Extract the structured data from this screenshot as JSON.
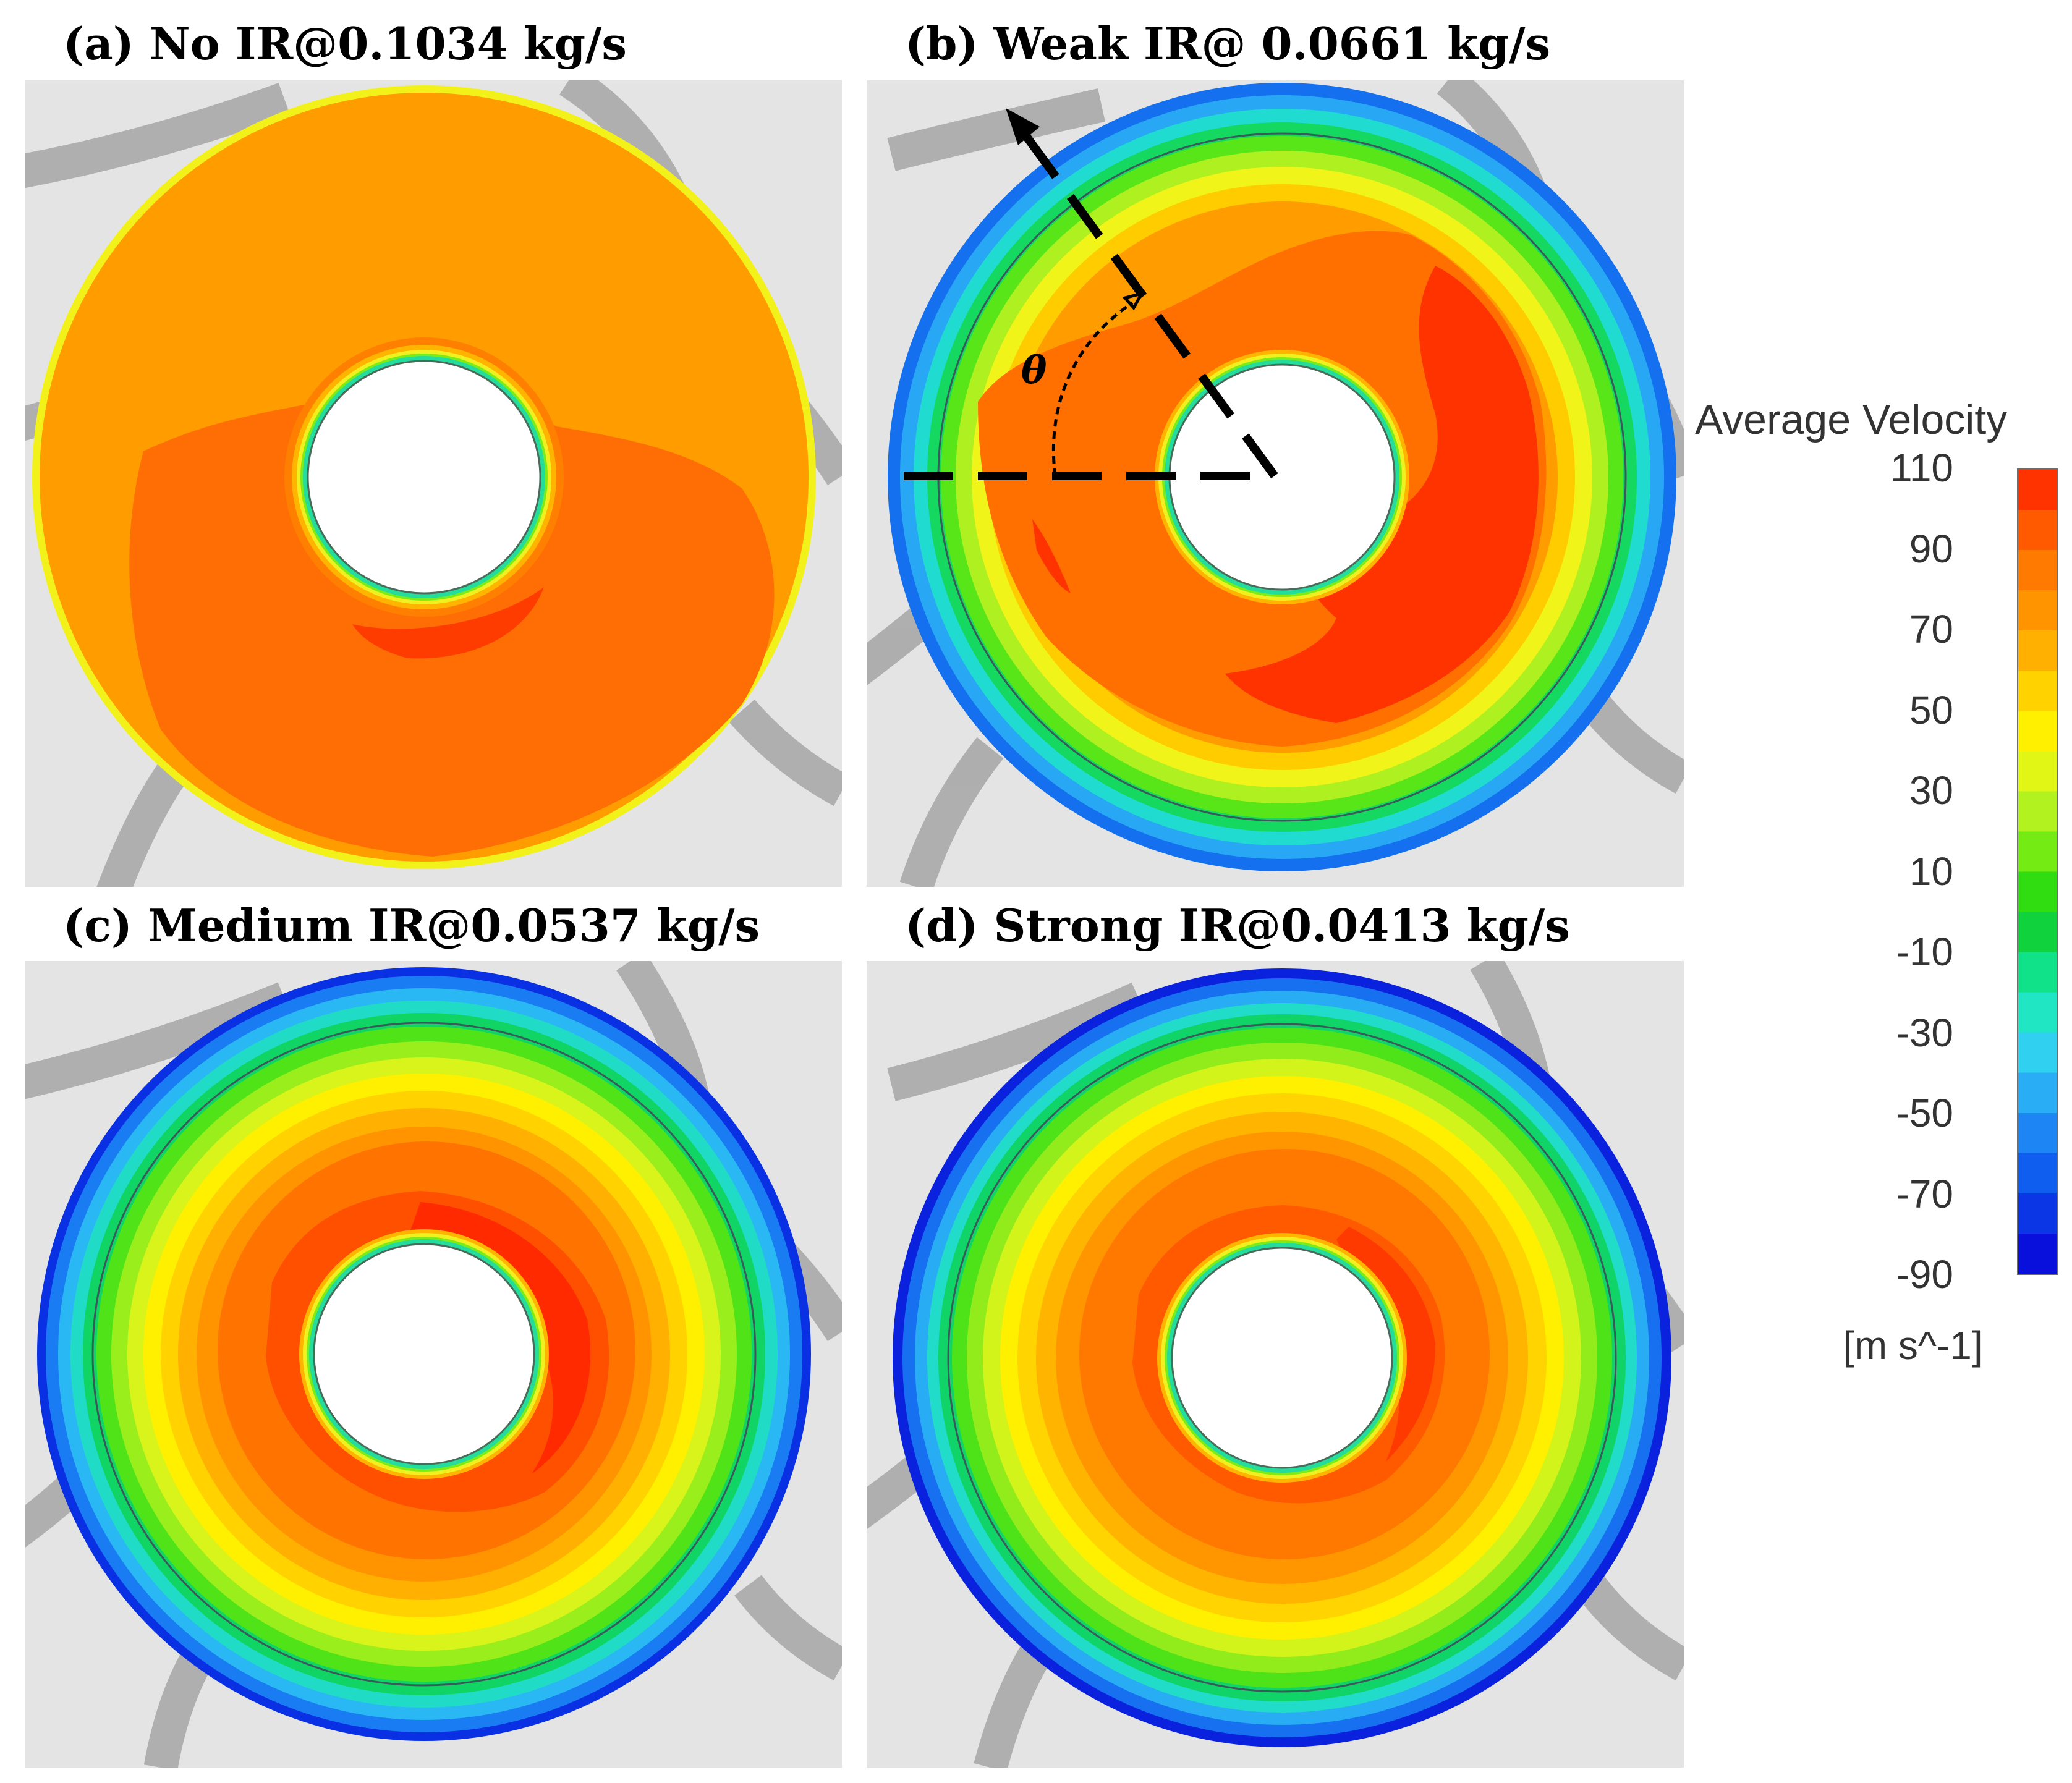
{
  "panels": [
    {
      "id": "a",
      "title": "(a) No IR@0.1034 kg/s",
      "regime": "no-ir"
    },
    {
      "id": "b",
      "title": "(b) Weak IR@ 0.0661 kg/s",
      "regime": "weak",
      "angle_symbol": "θ"
    },
    {
      "id": "c",
      "title": "(c) Medium IR@0.0537 kg/s",
      "regime": "medium"
    },
    {
      "id": "d",
      "title": "(d) Strong IR@0.0413 kg/s",
      "regime": "strong"
    }
  ],
  "legend": {
    "title": "Average Velocity",
    "unit": "[m s^-1]",
    "ticks": [
      "110",
      "90",
      "70",
      "50",
      "30",
      "10",
      "-10",
      "-30",
      "-50",
      "-70",
      "-90"
    ],
    "min": -90,
    "max": 110,
    "levels": 20,
    "colors": [
      "#0a10dc",
      "#0a36e6",
      "#0f5ef0",
      "#1e86f4",
      "#29aef6",
      "#2fd0f0",
      "#20e6c4",
      "#10e28a",
      "#10d23c",
      "#30dd10",
      "#74ec14",
      "#b2f21e",
      "#e2f616",
      "#fff000",
      "#ffd200",
      "#ffb000",
      "#ff9400",
      "#ff7a00",
      "#ff5a00",
      "#ff3300"
    ]
  }
}
